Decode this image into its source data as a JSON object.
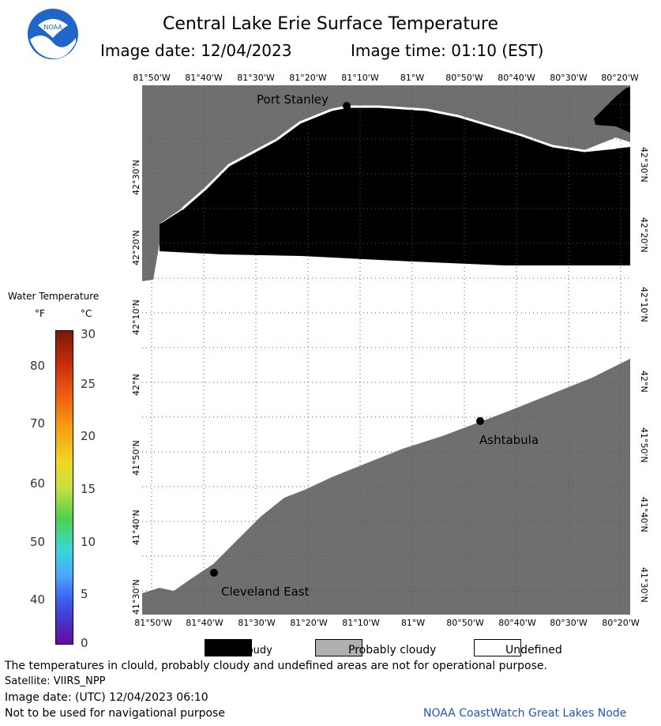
{
  "header": {
    "title": "Central Lake Erie Surface Temperature",
    "image_date": "Image date: 12/04/2023",
    "image_time": "Image time: 01:10 (EST)"
  },
  "logo": {
    "text": "NOAA"
  },
  "map": {
    "lon_ticks": [
      "81°50'W",
      "81°40'W",
      "81°30'W",
      "81°20'W",
      "81°10'W",
      "81°W",
      "80°50'W",
      "80°40'W",
      "80°30'W",
      "80°20'W"
    ],
    "lat_ticks": [
      "42°30'N",
      "42°20'N",
      "42°10'N",
      "42°N",
      "41°50'N",
      "41°40'N",
      "41°30'N"
    ],
    "places": [
      "Port Stanley",
      "Ashtabula",
      "Cleveland East"
    ],
    "colors": {
      "land": "#6f6f6f",
      "cloud": "#000000",
      "undefined": "#ffffff",
      "grid": "#555555"
    }
  },
  "legend": {
    "title": "Water Temperature",
    "unit_f": "°F",
    "unit_c": "°C",
    "f_labels": [
      "80",
      "70",
      "60",
      "50",
      "40"
    ],
    "c_labels": [
      "30",
      "25",
      "20",
      "15",
      "10",
      "5",
      "0"
    ]
  },
  "key": {
    "cloudy": "Cloudy",
    "probably_cloudy": "Probably cloudy",
    "undefined": "Undefined",
    "colors": {
      "cloudy": "#000000",
      "probably_cloudy": "#b0b0b0",
      "undefined": "#ffffff"
    }
  },
  "footer": {
    "disclaimer": "The temperatures in clould, probably cloudy and undefined areas are not for operational purpose.",
    "satellite": "Satellite: VIIRS_NPP",
    "utc_date": "Image date: (UTC) 12/04/2023   06:10",
    "navigation": "Not to be used for navigational purpose",
    "credit": "NOAA CoastWatch Great Lakes Node"
  }
}
